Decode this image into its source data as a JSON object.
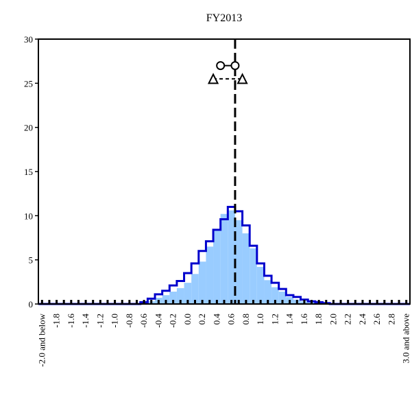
{
  "chart_data": {
    "type": "histogram",
    "title": "FY2013",
    "xlabel": "",
    "ylabel": "",
    "ylim": [
      0,
      30
    ],
    "yticks": [
      0,
      5,
      10,
      15,
      20,
      25,
      30
    ],
    "x_bins": [
      -2.0,
      -1.9,
      -1.8,
      -1.7,
      -1.6,
      -1.5,
      -1.4,
      -1.3,
      -1.2,
      -1.1,
      -1.0,
      -0.9,
      -0.8,
      -0.7,
      -0.6,
      -0.5,
      -0.4,
      -0.3,
      -0.2,
      -0.1,
      0.0,
      0.1,
      0.2,
      0.3,
      0.4,
      0.5,
      0.6,
      0.7,
      0.8,
      0.9,
      1.0,
      1.1,
      1.2,
      1.3,
      1.4,
      1.5,
      1.6,
      1.7,
      1.8,
      1.9,
      2.0,
      2.1,
      2.2,
      2.3,
      2.4,
      2.5,
      2.6,
      2.7,
      2.8,
      2.9,
      3.0
    ],
    "x_tick_labels": [
      "-2.0 and below",
      "-1.8",
      "-1.6",
      "-1.4",
      "-1.2",
      "-1.0",
      "-0.8",
      "-0.6",
      "-0.4",
      "-0.2",
      "0.0",
      "0.2",
      "0.4",
      "0.6",
      "0.8",
      "1.0",
      "1.2",
      "1.4",
      "1.6",
      "1.8",
      "2.0",
      "2.2",
      "2.4",
      "2.6",
      "2.8",
      "3.0 and above"
    ],
    "series": [
      {
        "style": "filled-area",
        "color": "#99ccff",
        "values": [
          0,
          0,
          0,
          0,
          0,
          0,
          0,
          0,
          0,
          0,
          0,
          0,
          0,
          0,
          0.1,
          0.3,
          0.7,
          1.0,
          1.4,
          1.8,
          2.4,
          3.4,
          4.8,
          6.5,
          8.3,
          10.2,
          10.6,
          9.5,
          8.0,
          6.3,
          4.2,
          2.7,
          1.9,
          1.4,
          0.8,
          0.5,
          0.3,
          0.2,
          0.1,
          0,
          0,
          0,
          0,
          0,
          0,
          0,
          0,
          0,
          0,
          0,
          0
        ]
      },
      {
        "style": "step-line",
        "color": "#0000cc",
        "values": [
          0,
          0,
          0,
          0,
          0,
          0,
          0,
          0,
          0,
          0,
          0,
          0,
          0,
          0,
          0.2,
          0.6,
          1.1,
          1.5,
          2.1,
          2.6,
          3.5,
          4.6,
          6.0,
          7.1,
          8.4,
          9.6,
          11.0,
          10.5,
          8.9,
          6.6,
          4.6,
          3.2,
          2.4,
          1.7,
          1.0,
          0.8,
          0.5,
          0.3,
          0.2,
          0.1,
          0,
          0,
          0,
          0,
          0,
          0,
          0,
          0,
          0,
          0,
          0
        ]
      }
    ],
    "reference_line": {
      "x": 0.7,
      "style": "dashed",
      "color": "#000000"
    },
    "markers": {
      "circles": {
        "x_from": 0.5,
        "x_to": 0.7,
        "y": 27
      },
      "triangles": {
        "x_from": 0.4,
        "x_to": 0.8,
        "y": 25.5
      }
    },
    "baseline_dots": true
  }
}
